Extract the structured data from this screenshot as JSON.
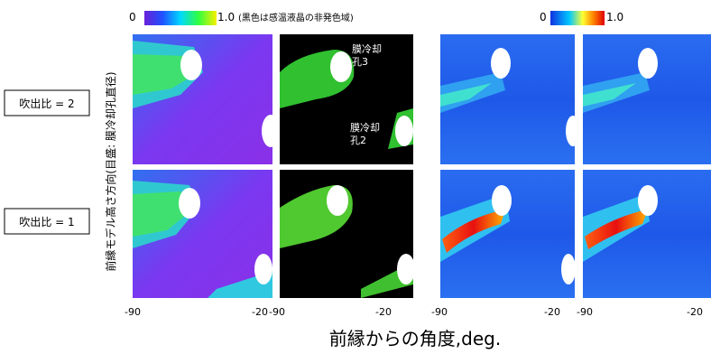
{
  "colorbars": {
    "left": {
      "min": "0",
      "max": "1.0",
      "note": "(黒色は感温液晶の非発色域)"
    },
    "right": {
      "min": "0",
      "max": "1.0"
    }
  },
  "rows": [
    {
      "label": "吹出比 = 2"
    },
    {
      "label": "吹出比 = 1"
    }
  ],
  "y_axis_label": "前縁モデル高さ方向(目盛: 膜冷却孔直径)",
  "panel_labels": [
    {
      "line1": "膜冷却",
      "line2": "孔3"
    },
    {
      "line1": "膜冷却",
      "line2": "孔2"
    }
  ],
  "columns": [
    {
      "ticks": [
        "-90",
        "-20"
      ]
    },
    {
      "ticks": [
        "-90",
        "-20"
      ]
    },
    {
      "ticks": [
        "-90",
        "-20"
      ]
    },
    {
      "ticks": [
        "-90",
        "-20"
      ]
    }
  ],
  "x_axis_label": "前縁からの角度,deg."
}
